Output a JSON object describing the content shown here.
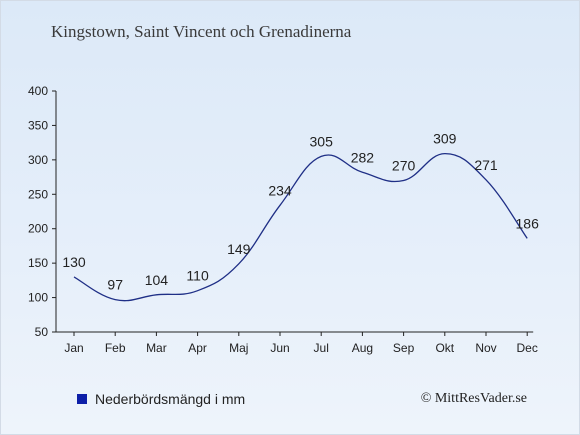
{
  "header": {
    "location": "Kingstown, Saint Vincent och Grenadinerna"
  },
  "legend": {
    "label": "Nederbördsmängd i mm",
    "swatch_color": "#0d1fa8"
  },
  "credit": {
    "text": "© MittResVader.se"
  },
  "chart_data": {
    "type": "line",
    "categories": [
      "Jan",
      "Feb",
      "Mar",
      "Apr",
      "Maj",
      "Jun",
      "Jul",
      "Aug",
      "Sep",
      "Okt",
      "Nov",
      "Dec"
    ],
    "series": [
      {
        "name": "Nederbördsmängd i mm",
        "values": [
          130,
          97,
          104,
          110,
          149,
          234,
          305,
          282,
          270,
          309,
          271,
          186
        ],
        "color": "#1f2f86"
      }
    ],
    "yticks": [
      50,
      100,
      150,
      200,
      250,
      300,
      350,
      400
    ],
    "ylim": [
      50,
      400
    ],
    "grid": false,
    "legend_position": "bottom-left"
  }
}
